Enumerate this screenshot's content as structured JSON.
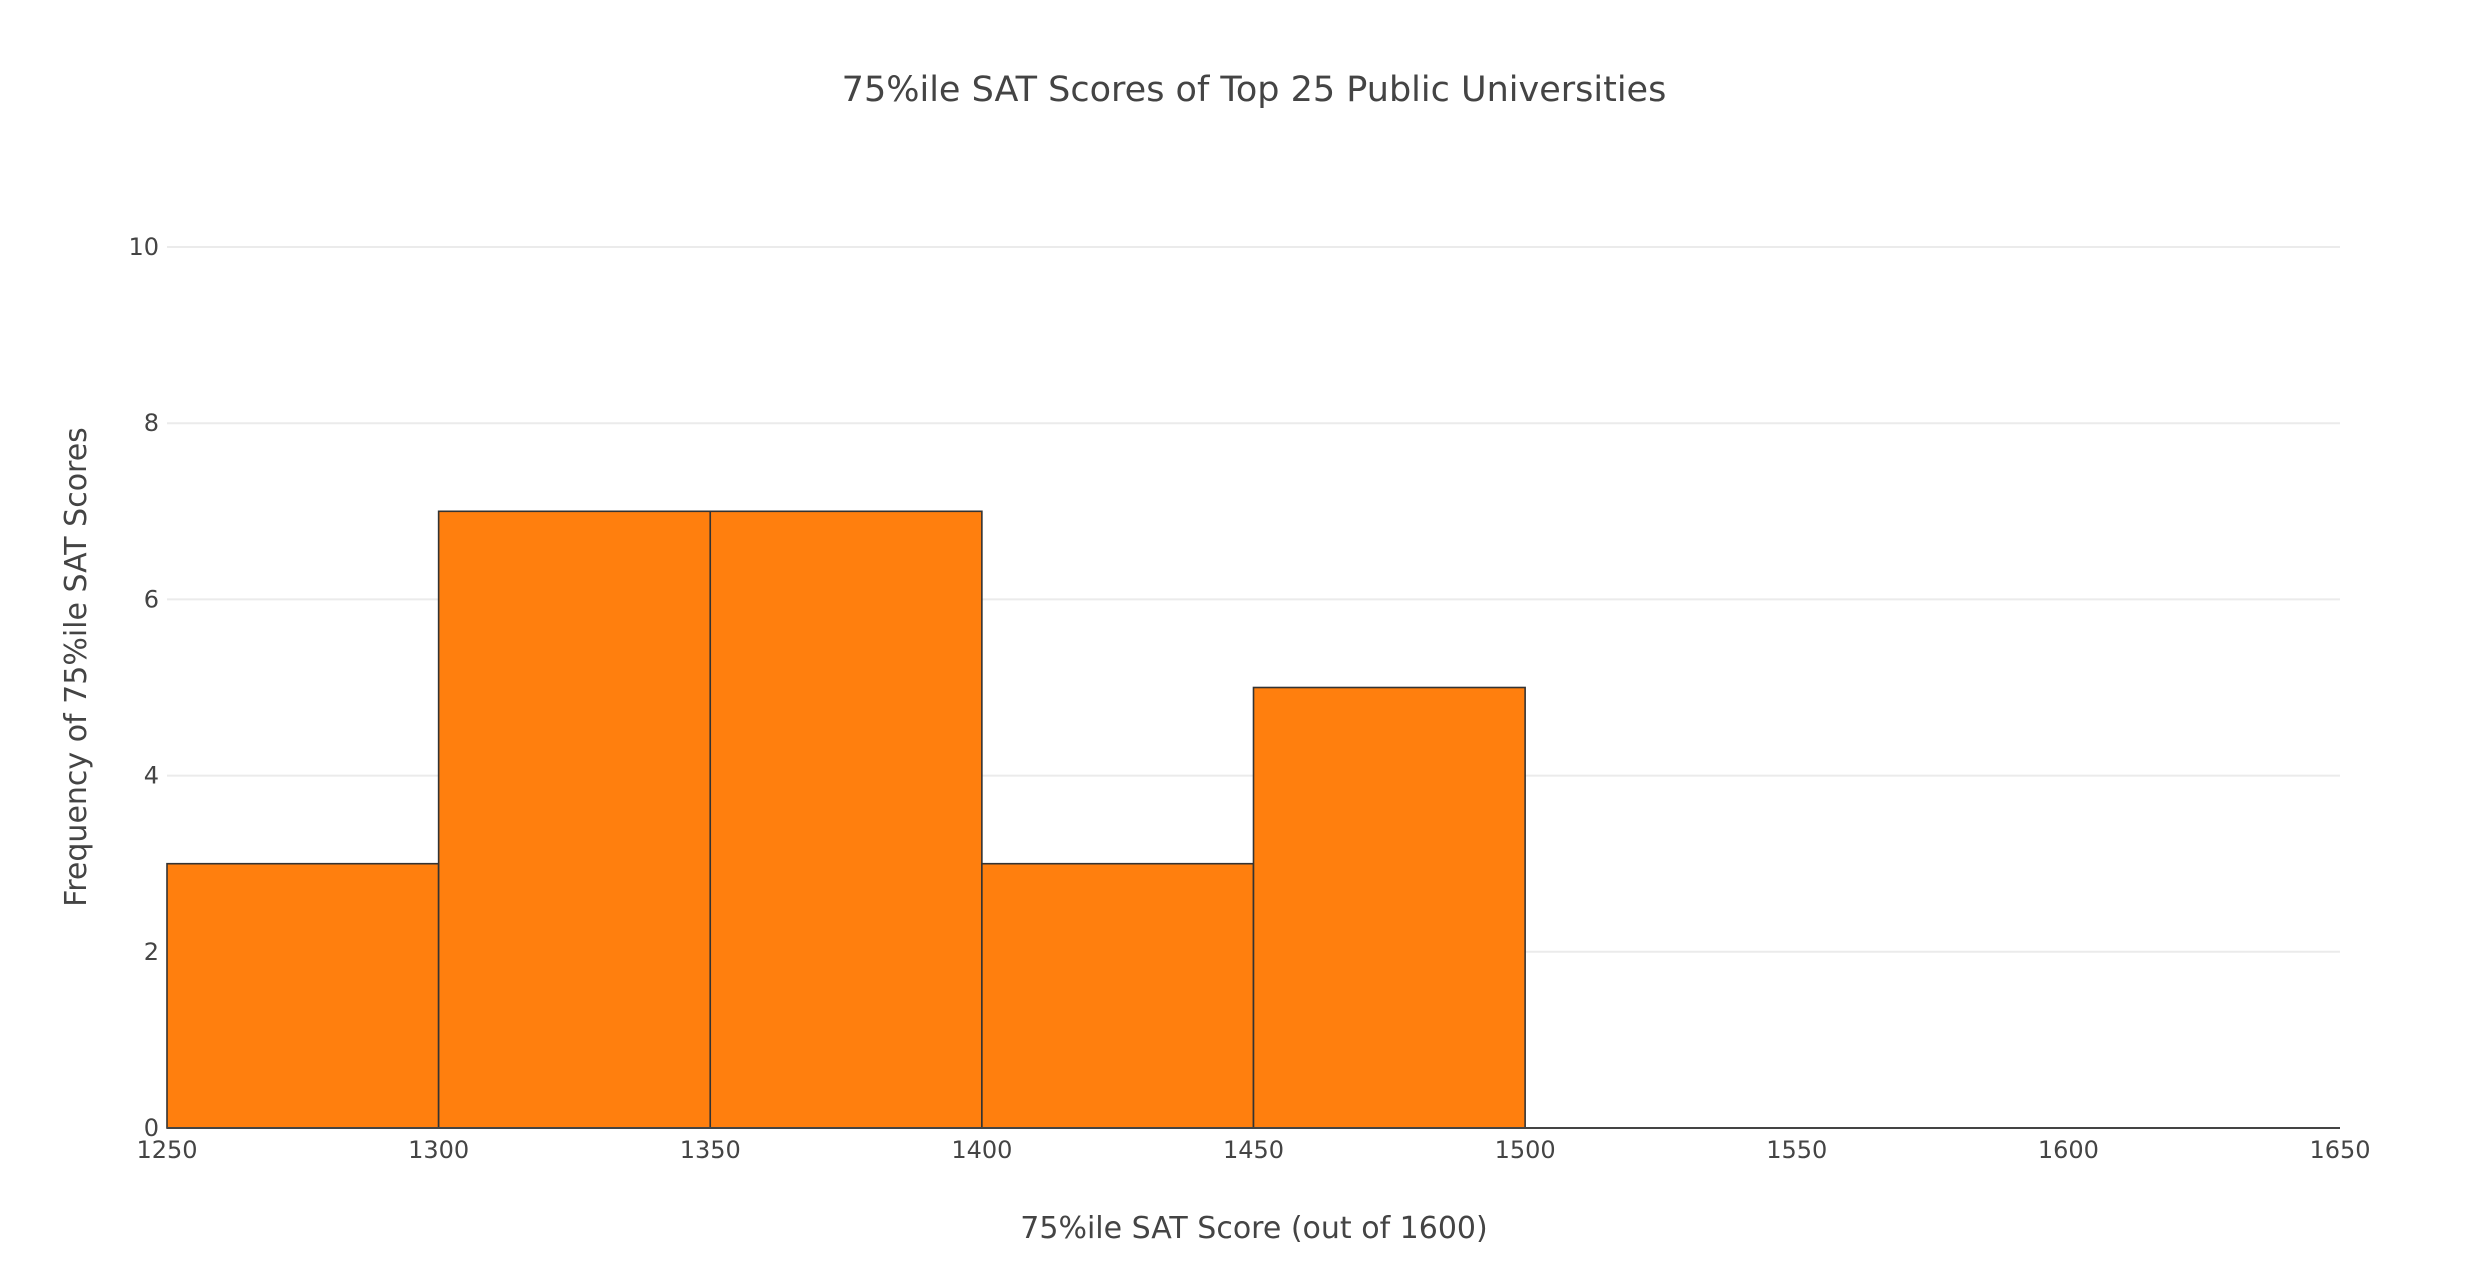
{
  "chart_data": {
    "type": "bar",
    "title": "75%ile SAT Scores of Top 25 Public Universities",
    "xlabel": "75%ile SAT Score (out of 1600)",
    "ylabel": "Frequency of 75%ile SAT Scores",
    "xlim": [
      1250,
      1650
    ],
    "ylim": [
      0,
      10
    ],
    "x_ticks": [
      "1250",
      "1300",
      "1350",
      "1400",
      "1450",
      "1500",
      "1550",
      "1600",
      "1650"
    ],
    "y_ticks": [
      "0",
      "2",
      "4",
      "6",
      "8",
      "10"
    ],
    "bins": [
      {
        "start": 1250,
        "end": 1300,
        "count": 3
      },
      {
        "start": 1300,
        "end": 1350,
        "count": 7
      },
      {
        "start": 1350,
        "end": 1400,
        "count": 7
      },
      {
        "start": 1400,
        "end": 1450,
        "count": 3
      },
      {
        "start": 1450,
        "end": 1500,
        "count": 5
      }
    ],
    "bar_color": "#ff7f0e",
    "grid": true,
    "legend": "none"
  }
}
